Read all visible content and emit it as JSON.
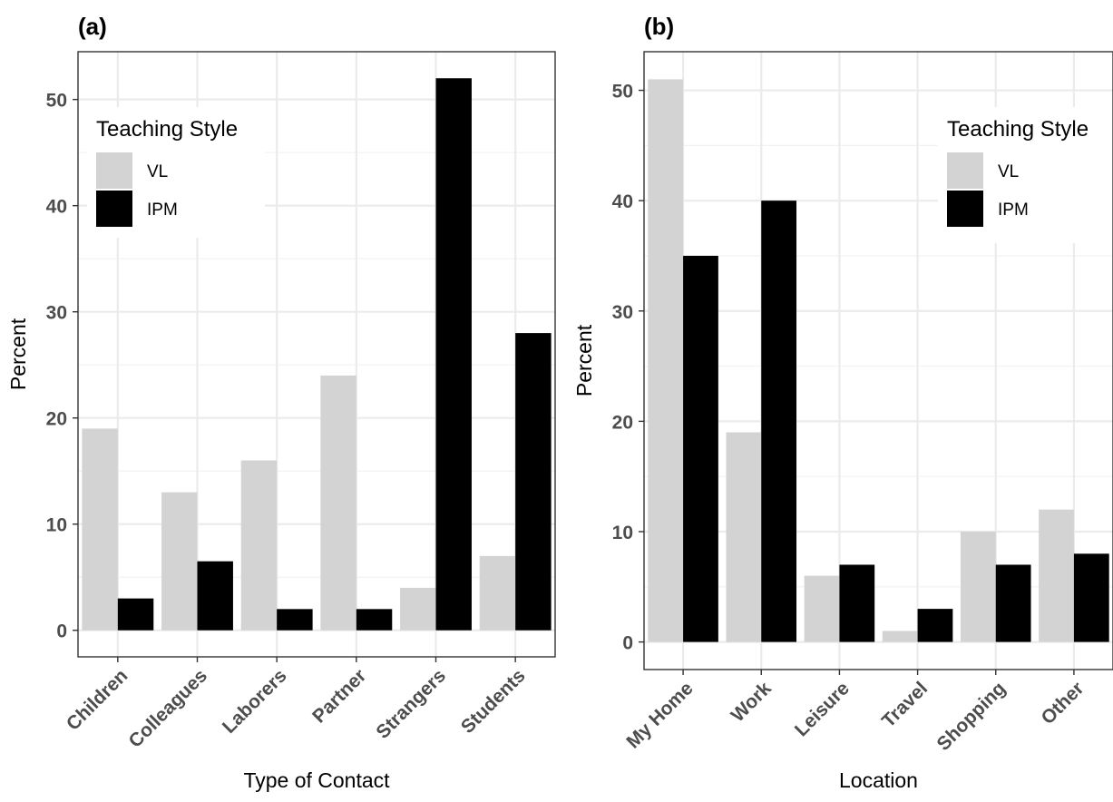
{
  "chart_data": [
    {
      "panel_label": "(a)",
      "type": "bar",
      "categories": [
        "Children",
        "Colleagues",
        "Laborers",
        "Partner",
        "Strangers",
        "Students"
      ],
      "series": [
        {
          "name": "VL",
          "color": "#d3d3d3",
          "values": [
            19,
            13,
            16,
            24,
            4,
            7
          ]
        },
        {
          "name": "IPM",
          "color": "#000000",
          "values": [
            3,
            6.5,
            2,
            2,
            52,
            28
          ]
        }
      ],
      "xlabel": "Type of Contact",
      "ylabel": "Percent",
      "ylim": [
        -2.5,
        54.5
      ],
      "yticks": [
        0,
        10,
        20,
        30,
        40,
        50
      ],
      "grid": true,
      "legend": {
        "title": "Teaching Style",
        "placement": "top-left"
      }
    },
    {
      "panel_label": "(b)",
      "type": "bar",
      "categories": [
        "My Home",
        "Work",
        "Leisure",
        "Travel",
        "Shopping",
        "Other"
      ],
      "series": [
        {
          "name": "VL",
          "color": "#d3d3d3",
          "values": [
            51,
            19,
            6,
            1,
            10,
            12
          ]
        },
        {
          "name": "IPM",
          "color": "#000000",
          "values": [
            35,
            40,
            7,
            3,
            7,
            8
          ]
        }
      ],
      "xlabel": "Location",
      "ylabel": "Percent",
      "ylim": [
        -2.5,
        53.5
      ],
      "yticks": [
        0,
        10,
        20,
        30,
        40,
        50
      ],
      "grid": true,
      "legend": {
        "title": "Teaching Style",
        "placement": "top-right"
      }
    }
  ]
}
